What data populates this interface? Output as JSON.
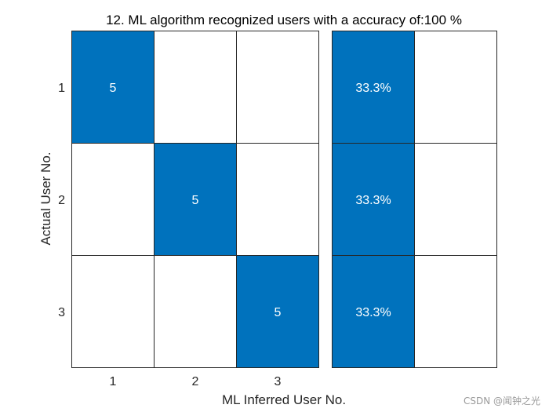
{
  "chart_data": {
    "type": "heatmap",
    "title": "12. ML algorithm recognized users with a accuracy of:100 %",
    "xlabel": "ML Inferred User No.",
    "ylabel": "Actual User No.",
    "x_categories": [
      "1",
      "2",
      "3"
    ],
    "y_categories": [
      "1",
      "2",
      "3"
    ],
    "matrix": [
      [
        5,
        0,
        0
      ],
      [
        0,
        5,
        0
      ],
      [
        0,
        0,
        5
      ]
    ],
    "row_summary": {
      "columns": 2,
      "values": [
        "33.3%",
        "33.3%",
        "33.3%"
      ],
      "filled_column": 0
    },
    "colors": {
      "fill": "#0072BD",
      "empty": "#ffffff",
      "border": "#262626",
      "text_on_fill": "#ffffff",
      "axis_text": "#262626"
    }
  },
  "watermark": "CSDN @闻钟之光"
}
